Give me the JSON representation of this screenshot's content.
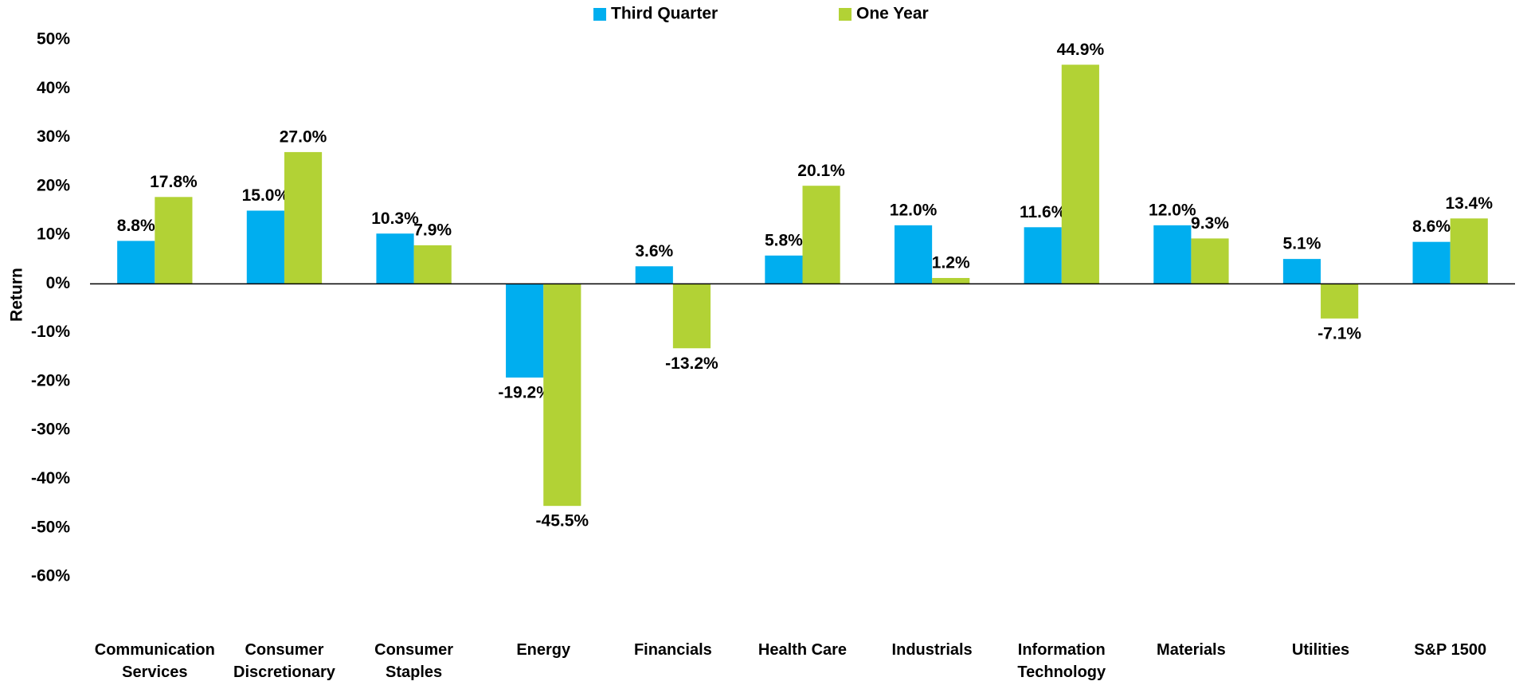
{
  "chart_data": {
    "type": "bar",
    "y_label": "Return",
    "categories": [
      "Communication Services",
      "Consumer Discretionary",
      "Consumer Staples",
      "Energy",
      "Financials",
      "Health Care",
      "Industrials",
      "Information Technology",
      "Materials",
      "Utilities",
      "S&P 1500"
    ],
    "series": [
      {
        "name": "Third Quarter",
        "color": "#00aeef",
        "values": [
          8.8,
          15.0,
          10.3,
          -19.2,
          3.6,
          5.8,
          12.0,
          11.6,
          12.0,
          5.1,
          8.6
        ],
        "value_labels": [
          "8.8%",
          "15.0%",
          "10.3%",
          "-19.2%",
          "3.6%",
          "5.8%",
          "12.0%",
          "11.6%",
          "12.0%",
          "5.1%",
          "8.6%"
        ]
      },
      {
        "name": "One Year",
        "color": "#b2d235",
        "values": [
          17.8,
          27.0,
          7.9,
          -45.5,
          -13.2,
          20.1,
          1.2,
          44.9,
          9.3,
          -7.1,
          13.4
        ],
        "value_labels": [
          "17.8%",
          "27.0%",
          "7.9%",
          "-45.5%",
          "-13.2%",
          "20.1%",
          "1.2%",
          "44.9%",
          "9.3%",
          "-7.1%",
          "13.4%"
        ]
      }
    ],
    "ylim": [
      -60,
      50
    ],
    "yticks": [
      {
        "value": 50,
        "label": "50%"
      },
      {
        "value": 40,
        "label": "40%"
      },
      {
        "value": 30,
        "label": "30%"
      },
      {
        "value": 20,
        "label": "20%"
      },
      {
        "value": 10,
        "label": "10%"
      },
      {
        "value": 0,
        "label": "0%"
      },
      {
        "value": -10,
        "label": "-10%"
      },
      {
        "value": -20,
        "label": "-20%"
      },
      {
        "value": -30,
        "label": "-30%"
      },
      {
        "value": -40,
        "label": "-40%"
      },
      {
        "value": -50,
        "label": "-50%"
      },
      {
        "value": -60,
        "label": "-60%"
      }
    ],
    "legend": "top",
    "grid": false
  }
}
